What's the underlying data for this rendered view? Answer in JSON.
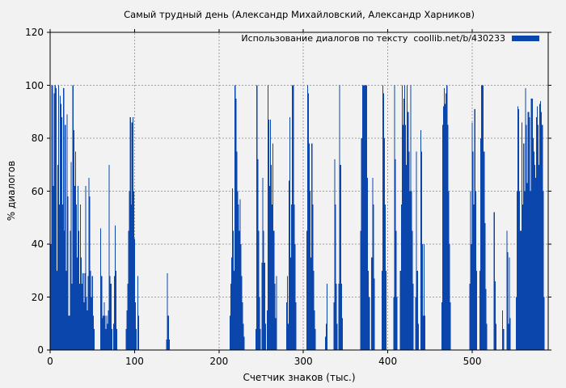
{
  "figure": {
    "background": "#f2f2f2",
    "border_color": "#000000",
    "grid_color": "#a0a0a0",
    "bar_color": "#0b46ad"
  },
  "chart_data": {
    "type": "bar",
    "title": "Самый трудный день (Александр Михайловский, Александр Харников)",
    "xlabel": "Счетчик знаков (тыс.)",
    "ylabel": "% диалогов",
    "legend_label": "Использование диалогов по тексту  coollib.net/b/430233",
    "legend_position": "top-right-inside",
    "grid": true,
    "xlim": [
      0,
      590
    ],
    "ylim": [
      0,
      120
    ],
    "xticks": [
      0,
      100,
      200,
      300,
      400,
      500
    ],
    "yticks": [
      0,
      20,
      40,
      60,
      80,
      100,
      120
    ],
    "bar_color": "#0b46ad",
    "points": [
      [
        0,
        18
      ],
      [
        1,
        40
      ],
      [
        2,
        100
      ],
      [
        3,
        100
      ],
      [
        4,
        62
      ],
      [
        5,
        97
      ],
      [
        6,
        100
      ],
      [
        7,
        99
      ],
      [
        8,
        30
      ],
      [
        9,
        70
      ],
      [
        10,
        100
      ],
      [
        11,
        55
      ],
      [
        12,
        96
      ],
      [
        13,
        93
      ],
      [
        14,
        88
      ],
      [
        15,
        55
      ],
      [
        16,
        99
      ],
      [
        17,
        45
      ],
      [
        18,
        85
      ],
      [
        19,
        30
      ],
      [
        20,
        89
      ],
      [
        21,
        58
      ],
      [
        22,
        13
      ],
      [
        23,
        13
      ],
      [
        24,
        45
      ],
      [
        25,
        71
      ],
      [
        26,
        25
      ],
      [
        27,
        100
      ],
      [
        28,
        83
      ],
      [
        29,
        62
      ],
      [
        30,
        75
      ],
      [
        31,
        55
      ],
      [
        32,
        35
      ],
      [
        33,
        62
      ],
      [
        34,
        45
      ],
      [
        35,
        25
      ],
      [
        36,
        55
      ],
      [
        37,
        35
      ],
      [
        38,
        25
      ],
      [
        39,
        29
      ],
      [
        40,
        18
      ],
      [
        41,
        29
      ],
      [
        42,
        62
      ],
      [
        43,
        20
      ],
      [
        44,
        15
      ],
      [
        45,
        28
      ],
      [
        46,
        65
      ],
      [
        47,
        58
      ],
      [
        48,
        30
      ],
      [
        49,
        20
      ],
      [
        50,
        28
      ],
      [
        51,
        13
      ],
      [
        52,
        8
      ],
      [
        60,
        46
      ],
      [
        61,
        28
      ],
      [
        62,
        12
      ],
      [
        63,
        13
      ],
      [
        64,
        18
      ],
      [
        65,
        13
      ],
      [
        66,
        8
      ],
      [
        67,
        13
      ],
      [
        68,
        10
      ],
      [
        69,
        15
      ],
      [
        70,
        70
      ],
      [
        71,
        28
      ],
      [
        72,
        25
      ],
      [
        73,
        8
      ],
      [
        75,
        10
      ],
      [
        76,
        28
      ],
      [
        77,
        47
      ],
      [
        78,
        30
      ],
      [
        79,
        8
      ],
      [
        90,
        8
      ],
      [
        91,
        15
      ],
      [
        92,
        25
      ],
      [
        93,
        45
      ],
      [
        94,
        60
      ],
      [
        95,
        88
      ],
      [
        96,
        55
      ],
      [
        97,
        86
      ],
      [
        98,
        88
      ],
      [
        99,
        60
      ],
      [
        100,
        42
      ],
      [
        101,
        18
      ],
      [
        102,
        8
      ],
      [
        104,
        28
      ],
      [
        105,
        13
      ],
      [
        138,
        4
      ],
      [
        139,
        29
      ],
      [
        140,
        13
      ],
      [
        141,
        4
      ],
      [
        213,
        13
      ],
      [
        214,
        25
      ],
      [
        215,
        35
      ],
      [
        216,
        61
      ],
      [
        217,
        45
      ],
      [
        218,
        30
      ],
      [
        219,
        100
      ],
      [
        220,
        95
      ],
      [
        221,
        75
      ],
      [
        222,
        60
      ],
      [
        223,
        55
      ],
      [
        224,
        45
      ],
      [
        225,
        57
      ],
      [
        226,
        40
      ],
      [
        227,
        28
      ],
      [
        228,
        18
      ],
      [
        229,
        10
      ],
      [
        230,
        5
      ],
      [
        244,
        8
      ],
      [
        245,
        100
      ],
      [
        246,
        72
      ],
      [
        247,
        45
      ],
      [
        248,
        20
      ],
      [
        249,
        8
      ],
      [
        251,
        33
      ],
      [
        252,
        65
      ],
      [
        253,
        45
      ],
      [
        254,
        33
      ],
      [
        255,
        10
      ],
      [
        257,
        15
      ],
      [
        258,
        100
      ],
      [
        259,
        87
      ],
      [
        260,
        62
      ],
      [
        261,
        87
      ],
      [
        262,
        70
      ],
      [
        263,
        55
      ],
      [
        264,
        78
      ],
      [
        265,
        45
      ],
      [
        266,
        25
      ],
      [
        267,
        12
      ],
      [
        268,
        28
      ],
      [
        280,
        18
      ],
      [
        281,
        28
      ],
      [
        282,
        10
      ],
      [
        283,
        64
      ],
      [
        284,
        88
      ],
      [
        285,
        35
      ],
      [
        286,
        55
      ],
      [
        287,
        100
      ],
      [
        288,
        100
      ],
      [
        289,
        55
      ],
      [
        290,
        40
      ],
      [
        291,
        18
      ],
      [
        304,
        45
      ],
      [
        305,
        100
      ],
      [
        306,
        97
      ],
      [
        307,
        78
      ],
      [
        308,
        60
      ],
      [
        309,
        35
      ],
      [
        310,
        78
      ],
      [
        311,
        55
      ],
      [
        312,
        30
      ],
      [
        313,
        15
      ],
      [
        314,
        8
      ],
      [
        326,
        5
      ],
      [
        327,
        10
      ],
      [
        328,
        25
      ],
      [
        336,
        18
      ],
      [
        337,
        72
      ],
      [
        338,
        55
      ],
      [
        339,
        25
      ],
      [
        340,
        10
      ],
      [
        342,
        25
      ],
      [
        343,
        100
      ],
      [
        344,
        70
      ],
      [
        345,
        25
      ],
      [
        346,
        12
      ],
      [
        368,
        45
      ],
      [
        369,
        80
      ],
      [
        370,
        100
      ],
      [
        371,
        100
      ],
      [
        372,
        100
      ],
      [
        373,
        100
      ],
      [
        374,
        100
      ],
      [
        375,
        100
      ],
      [
        376,
        65
      ],
      [
        377,
        30
      ],
      [
        378,
        20
      ],
      [
        381,
        35
      ],
      [
        382,
        65
      ],
      [
        383,
        55
      ],
      [
        384,
        27
      ],
      [
        393,
        30
      ],
      [
        394,
        100
      ],
      [
        395,
        97
      ],
      [
        396,
        80
      ],
      [
        397,
        55
      ],
      [
        398,
        30
      ],
      [
        407,
        20
      ],
      [
        408,
        100
      ],
      [
        409,
        72
      ],
      [
        410,
        45
      ],
      [
        411,
        20
      ],
      [
        415,
        30
      ],
      [
        416,
        55
      ],
      [
        417,
        100
      ],
      [
        418,
        85
      ],
      [
        419,
        95
      ],
      [
        420,
        100
      ],
      [
        421,
        85
      ],
      [
        422,
        70
      ],
      [
        423,
        100
      ],
      [
        424,
        90
      ],
      [
        425,
        75
      ],
      [
        426,
        60
      ],
      [
        427,
        100
      ],
      [
        428,
        60
      ],
      [
        429,
        45
      ],
      [
        430,
        25
      ],
      [
        433,
        20
      ],
      [
        434,
        75
      ],
      [
        435,
        30
      ],
      [
        436,
        10
      ],
      [
        439,
        83
      ],
      [
        440,
        75
      ],
      [
        441,
        40
      ],
      [
        442,
        13
      ],
      [
        443,
        40
      ],
      [
        444,
        13
      ],
      [
        464,
        18
      ],
      [
        465,
        85
      ],
      [
        466,
        92
      ],
      [
        467,
        99
      ],
      [
        468,
        93
      ],
      [
        469,
        97
      ],
      [
        470,
        100
      ],
      [
        471,
        85
      ],
      [
        472,
        60
      ],
      [
        473,
        40
      ],
      [
        474,
        18
      ],
      [
        497,
        25
      ],
      [
        498,
        60
      ],
      [
        499,
        40
      ],
      [
        500,
        86
      ],
      [
        501,
        75
      ],
      [
        502,
        55
      ],
      [
        503,
        91
      ],
      [
        504,
        60
      ],
      [
        505,
        30
      ],
      [
        509,
        30
      ],
      [
        510,
        80
      ],
      [
        511,
        100
      ],
      [
        512,
        100
      ],
      [
        513,
        100
      ],
      [
        514,
        75
      ],
      [
        515,
        48
      ],
      [
        516,
        23
      ],
      [
        517,
        10
      ],
      [
        526,
        52
      ],
      [
        527,
        26
      ],
      [
        528,
        10
      ],
      [
        536,
        15
      ],
      [
        537,
        8
      ],
      [
        541,
        45
      ],
      [
        542,
        37
      ],
      [
        543,
        10
      ],
      [
        544,
        35
      ],
      [
        545,
        12
      ],
      [
        552,
        20
      ],
      [
        553,
        60
      ],
      [
        554,
        92
      ],
      [
        555,
        91
      ],
      [
        556,
        60
      ],
      [
        557,
        45
      ],
      [
        558,
        45
      ],
      [
        559,
        86
      ],
      [
        560,
        55
      ],
      [
        561,
        78
      ],
      [
        562,
        60
      ],
      [
        563,
        99
      ],
      [
        564,
        85
      ],
      [
        565,
        63
      ],
      [
        566,
        90
      ],
      [
        567,
        90
      ],
      [
        568,
        88
      ],
      [
        569,
        60
      ],
      [
        570,
        95
      ],
      [
        571,
        95
      ],
      [
        572,
        80
      ],
      [
        573,
        75
      ],
      [
        574,
        70
      ],
      [
        575,
        65
      ],
      [
        576,
        88
      ],
      [
        577,
        92
      ],
      [
        578,
        85
      ],
      [
        579,
        70
      ],
      [
        580,
        93
      ],
      [
        581,
        94
      ],
      [
        582,
        90
      ],
      [
        583,
        85
      ],
      [
        584,
        60
      ],
      [
        585,
        20
      ]
    ]
  }
}
